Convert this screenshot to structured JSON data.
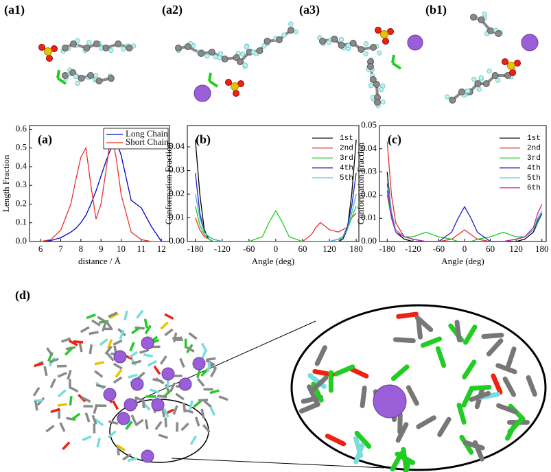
{
  "panel_labels": [
    "(a1)",
    "(a2)",
    "(a3)",
    "(b1)",
    "(d)"
  ],
  "chart_data": [
    {
      "type": "line",
      "title": "(a)",
      "x_label": "distance / Å",
      "y_label": "Length Fraction",
      "x": [
        6,
        6.5,
        7,
        7.5,
        7.75,
        8,
        8.25,
        8.5,
        8.75,
        9,
        9.25,
        9.5,
        9.75,
        10,
        10.5,
        11,
        11.5,
        12
      ],
      "series": [
        {
          "name": "Long Chain",
          "color": "#0000cc",
          "values": [
            0,
            0.005,
            0.02,
            0.05,
            0.07,
            0.1,
            0.14,
            0.2,
            0.27,
            0.35,
            0.43,
            0.5,
            0.54,
            0.46,
            0.22,
            0.18,
            0.08,
            0
          ]
        },
        {
          "name": "Short Chain",
          "color": "#e8302c",
          "values": [
            0,
            0.01,
            0.06,
            0.2,
            0.33,
            0.45,
            0.5,
            0.3,
            0.12,
            0.2,
            0.38,
            0.58,
            0.45,
            0.25,
            0.05,
            0.01,
            0,
            0
          ]
        }
      ],
      "xlim": [
        5.45,
        12.4
      ],
      "xticks": [
        6,
        7,
        8,
        9,
        10,
        11,
        12
      ],
      "ylim": [
        0,
        0.62
      ],
      "yticks": [
        {
          "value": 0,
          "label": "0.0"
        },
        0.1,
        0.2,
        0.3,
        0.4,
        0.5,
        0.6
      ],
      "legend": "upper right"
    },
    {
      "type": "line",
      "title": "(b)",
      "x_label": "Angle  (deg)",
      "y_label": "Conformation Fraction",
      "x": [
        -180,
        -170,
        -160,
        -150,
        -140,
        -120,
        -90,
        -60,
        -30,
        -15,
        0,
        15,
        30,
        60,
        80,
        90,
        100,
        120,
        140,
        150,
        160,
        170,
        180
      ],
      "series": [
        {
          "name": "1st",
          "color": "#000000",
          "values": [
            0.043,
            0.02,
            0.005,
            0.001,
            0,
            0,
            0,
            0,
            0,
            0,
            0,
            0,
            0,
            0,
            0,
            0,
            0,
            0,
            0,
            0.001,
            0.005,
            0.02,
            0.043
          ]
        },
        {
          "name": "2nd",
          "color": "#e8302c",
          "values": [
            0.01,
            0.005,
            0.002,
            0.001,
            0,
            0,
            0,
            0,
            0,
            0,
            0,
            0,
            0,
            0,
            0.003,
            0.006,
            0.008,
            0.005,
            0.004,
            0.005,
            0.006,
            0.01,
            0.012
          ]
        },
        {
          "name": "3rd",
          "color": "#22c922",
          "values": [
            0.015,
            0.007,
            0.003,
            0.001,
            0,
            0,
            0,
            0,
            0.002,
            0.008,
            0.013,
            0.008,
            0.002,
            0,
            0,
            0,
            0,
            0,
            0,
            0.002,
            0.005,
            0.01,
            0.015
          ]
        },
        {
          "name": "4th",
          "color": "#1a1acc",
          "values": [
            0.029,
            0.012,
            0.004,
            0.002,
            0.001,
            0,
            0,
            0,
            0,
            0,
            0,
            0,
            0,
            0,
            0,
            0,
            0,
            0,
            0.001,
            0.002,
            0.006,
            0.015,
            0.029
          ]
        },
        {
          "name": "5th",
          "color": "#3fb8c8",
          "values": [
            0.02,
            0.01,
            0.004,
            0.002,
            0.001,
            0,
            0,
            0,
            0,
            0,
            0,
            0,
            0,
            0,
            0,
            0,
            0,
            0,
            0.001,
            0.002,
            0.005,
            0.012,
            0.02
          ]
        }
      ],
      "xlim": [
        -198,
        186
      ],
      "xticks": [
        -180,
        -120,
        -60,
        0,
        60,
        120,
        180
      ],
      "ylim": [
        0,
        0.049
      ],
      "yticks": [
        {
          "value": 0,
          "label": "0.00"
        },
        0.01,
        0.02,
        0.03,
        0.04
      ],
      "legend": "upper right"
    },
    {
      "type": "line",
      "title": "(c)",
      "x_label": "Angle  (deg)",
      "y_label": "Conformation Fraction",
      "x": [
        -180,
        -170,
        -160,
        -140,
        -120,
        -90,
        -60,
        -30,
        -15,
        0,
        15,
        30,
        60,
        90,
        120,
        140,
        160,
        170,
        180
      ],
      "series": [
        {
          "name": "1st",
          "color": "#000000",
          "values": [
            0.03,
            0.012,
            0.004,
            0.001,
            0,
            0,
            0,
            0,
            0,
            0,
            0,
            0,
            0,
            0,
            0,
            0.001,
            0.004,
            0.008,
            0.012
          ]
        },
        {
          "name": "2nd",
          "color": "#e8302c",
          "values": [
            0.043,
            0.02,
            0.008,
            0.002,
            0.001,
            0,
            0,
            0.001,
            0.003,
            0.005,
            0.003,
            0.001,
            0,
            0,
            0.001,
            0.002,
            0.005,
            0.008,
            0.012
          ]
        },
        {
          "name": "3rd",
          "color": "#22c922",
          "values": [
            0.02,
            0.01,
            0.005,
            0.002,
            0.002,
            0.004,
            0.002,
            0.001,
            0,
            0,
            0,
            0.001,
            0.002,
            0.004,
            0.002,
            0.002,
            0.005,
            0.008,
            0.012
          ]
        },
        {
          "name": "4th",
          "color": "#1a1acc",
          "values": [
            0.025,
            0.012,
            0.005,
            0.002,
            0.001,
            0,
            0,
            0.004,
            0.01,
            0.015,
            0.01,
            0.004,
            0,
            0,
            0.001,
            0.002,
            0.005,
            0.009,
            0.012
          ]
        },
        {
          "name": "5th",
          "color": "#3fb8c8",
          "values": [
            0.027,
            0.013,
            0.005,
            0.002,
            0.001,
            0,
            0,
            0,
            0,
            0,
            0,
            0,
            0,
            0,
            0.001,
            0.002,
            0.005,
            0.01,
            0.013
          ]
        },
        {
          "name": "6th",
          "color": "#d020b0",
          "values": [
            0.022,
            0.01,
            0.004,
            0.002,
            0.001,
            0,
            0,
            0,
            0,
            0,
            0,
            0,
            0,
            0,
            0.001,
            0.002,
            0.006,
            0.012,
            0.016
          ]
        }
      ],
      "xlim": [
        -198,
        190
      ],
      "xticks": [
        -180,
        -120,
        -60,
        0,
        60,
        120,
        180
      ],
      "ylim": [
        0,
        0.05
      ],
      "yticks": [
        {
          "value": 0,
          "label": "0.00"
        },
        0.01,
        0.02,
        0.03,
        0.04,
        0.05
      ],
      "legend": "upper right"
    }
  ]
}
